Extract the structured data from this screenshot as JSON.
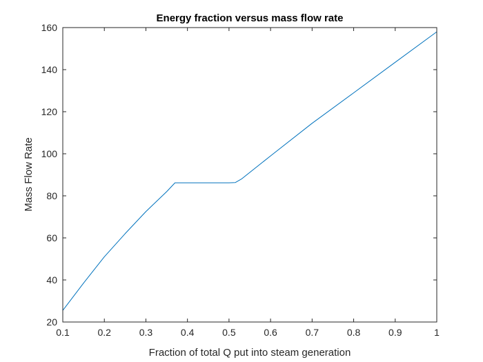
{
  "chart_data": {
    "type": "line",
    "title": "Energy fraction versus mass flow rate",
    "xlabel": "Fraction of total Q put into steam generation",
    "ylabel": "Mass Flow Rate",
    "xlim": [
      0.1,
      1
    ],
    "ylim": [
      20,
      160
    ],
    "xticks": [
      0.1,
      0.2,
      0.3,
      0.4,
      0.5,
      0.6,
      0.7,
      0.8,
      0.9,
      1
    ],
    "xtick_labels": [
      "0.1",
      "0.2",
      "0.3",
      "0.4",
      "0.5",
      "0.6",
      "0.7",
      "0.8",
      "0.9",
      "1"
    ],
    "yticks": [
      20,
      40,
      60,
      80,
      100,
      120,
      140,
      160
    ],
    "ytick_labels": [
      "20",
      "40",
      "60",
      "80",
      "100",
      "120",
      "140",
      "160"
    ],
    "grid": false,
    "series": [
      {
        "color": "#0072BD",
        "x": [
          0.1,
          0.15,
          0.2,
          0.25,
          0.3,
          0.35,
          0.37,
          0.4,
          0.45,
          0.5,
          0.515,
          0.53,
          0.6,
          0.7,
          0.8,
          0.9,
          1.0
        ],
        "y": [
          25.5,
          38.5,
          51.0,
          62.0,
          72.5,
          82.0,
          86.2,
          86.2,
          86.2,
          86.2,
          86.3,
          88.0,
          99.0,
          114.5,
          129.0,
          143.5,
          158.0
        ]
      }
    ]
  }
}
